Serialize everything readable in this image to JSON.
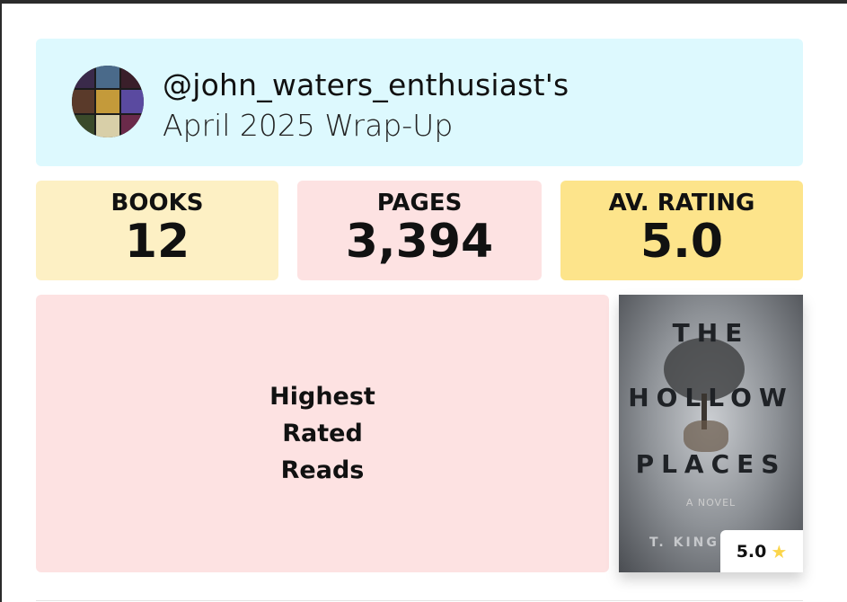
{
  "header": {
    "handle": "@john_waters_enthusiast's",
    "subtitle": "April 2025 Wrap-Up"
  },
  "stats": [
    {
      "label": "BOOKS",
      "value": "12",
      "color": "#fdf0c4"
    },
    {
      "label": "PAGES",
      "value": "3,394",
      "color": "#fde2e2"
    },
    {
      "label": "AV. RATING",
      "value": "5.0",
      "color": "#fde48b"
    }
  ],
  "highest": {
    "title": "Highest Rated Reads"
  },
  "book": {
    "title_line1": "THE",
    "title_line2": "HOLLOW",
    "title_line3": "PLACES",
    "tagline": "A NOVEL",
    "author": "T. KINGF",
    "rating": "5.0",
    "rating_icon": "star-icon"
  }
}
